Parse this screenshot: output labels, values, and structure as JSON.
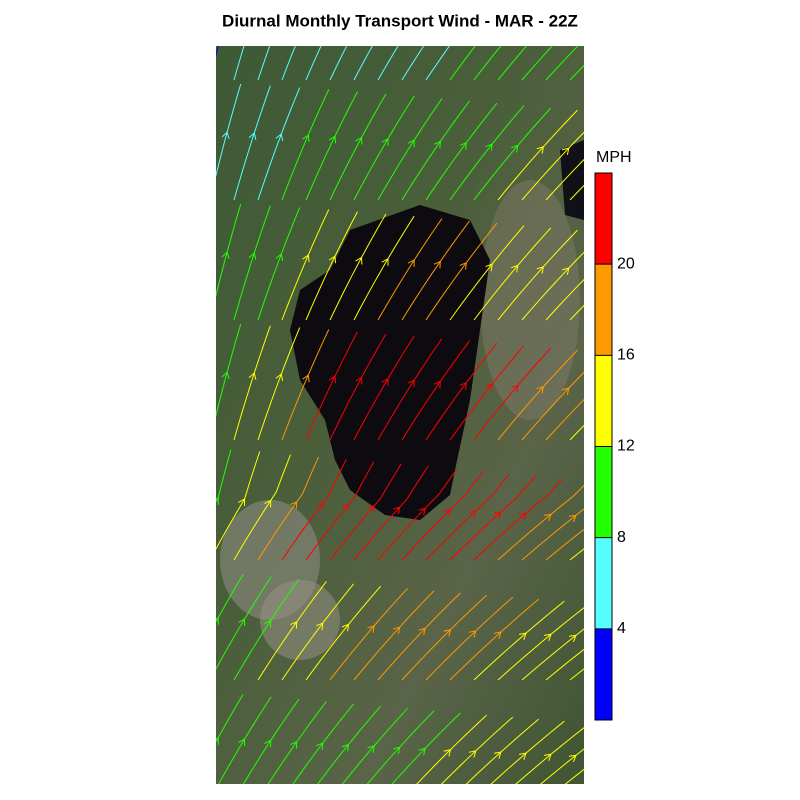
{
  "title": "Diurnal Monthly Transport Wind - MAR - 22Z",
  "colorbar": {
    "label": "MPH",
    "lim": [
      0,
      24
    ],
    "ticks": [
      4,
      8,
      12,
      16,
      20
    ],
    "colors": [
      "#0000ff",
      "#55ffff",
      "#22ff00",
      "#ffff00",
      "#ff9900",
      "#ff0000"
    ]
  }
}
